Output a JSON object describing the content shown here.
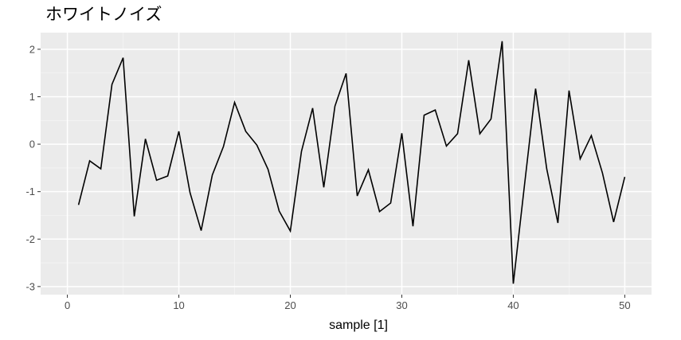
{
  "chart_data": {
    "type": "line",
    "title": "ホワイトノイズ",
    "xlabel": "sample [1]",
    "ylabel": "",
    "xlim": [
      -2.4,
      52.4
    ],
    "ylim": [
      -3.17,
      2.35
    ],
    "x_ticks": [
      0,
      10,
      20,
      30,
      40,
      50
    ],
    "y_ticks": [
      -3,
      -2,
      -1,
      0,
      1,
      2
    ],
    "x_tick_labels": [
      "0",
      "10",
      "20",
      "30",
      "40",
      "50"
    ],
    "y_tick_labels": [
      "-3",
      "-2",
      "-1",
      "0",
      "1",
      "2"
    ],
    "grid": true,
    "colors": {
      "panel_background": "#ebebeb",
      "grid_major": "#ffffff",
      "grid_minor": "#f5f5f5",
      "line": "#000000"
    },
    "series": [
      {
        "x": [
          1,
          2,
          3,
          4,
          5,
          6,
          7,
          8,
          9,
          10,
          11,
          12,
          13,
          14,
          15,
          16,
          17,
          18,
          19,
          20,
          21,
          22,
          23,
          24,
          25,
          26,
          27,
          28,
          29,
          30,
          31,
          32,
          33,
          34,
          35,
          36,
          37,
          38,
          39,
          40,
          41,
          42,
          43,
          44,
          45,
          46,
          47,
          48,
          49,
          50
        ],
        "values": [
          -1.28,
          -0.35,
          -0.52,
          1.26,
          1.82,
          -1.52,
          0.11,
          -0.76,
          -0.67,
          0.27,
          -1.02,
          -1.82,
          -0.65,
          -0.05,
          0.88,
          0.27,
          -0.02,
          -0.53,
          -1.41,
          -1.83,
          -0.15,
          0.76,
          -0.91,
          0.8,
          1.49,
          -1.09,
          -0.54,
          -1.42,
          -1.24,
          0.23,
          -1.73,
          0.61,
          0.72,
          -0.04,
          0.22,
          1.77,
          0.22,
          0.53,
          2.17,
          -2.94,
          -0.87,
          1.17,
          -0.52,
          -1.66,
          1.13,
          -0.31,
          0.18,
          -0.61,
          -1.64,
          -0.69
        ]
      }
    ]
  }
}
